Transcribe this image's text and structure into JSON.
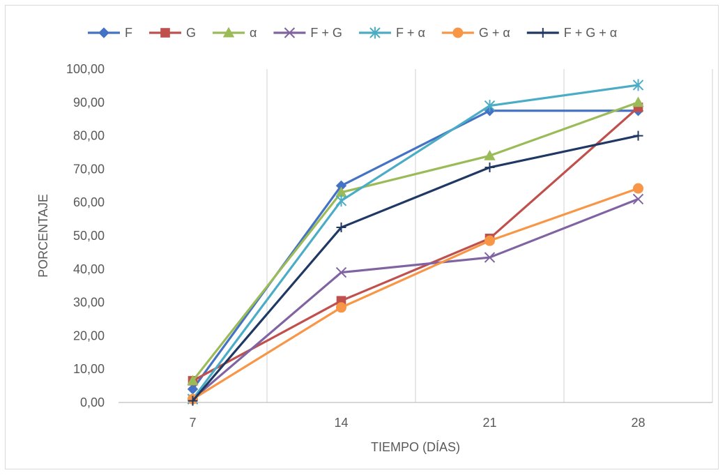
{
  "chart_data": {
    "type": "line",
    "title": "",
    "xlabel": "TIEMPO (DÍAS)",
    "ylabel": "PORCENTAJE",
    "categories": [
      "7",
      "14",
      "21",
      "28"
    ],
    "ylim": [
      0,
      100
    ],
    "ytick_labels": [
      "0,00",
      "10,00",
      "20,00",
      "30,00",
      "40,00",
      "50,00",
      "60,00",
      "70,00",
      "80,00",
      "90,00",
      "100,00"
    ],
    "grid": "vertical",
    "legend_position": "top",
    "series": [
      {
        "name": "F",
        "values": [
          4.0,
          65.0,
          87.5,
          87.5
        ],
        "color": "#4472C4",
        "marker": "diamond"
      },
      {
        "name": "G",
        "values": [
          6.5,
          30.5,
          49.2,
          88.5
        ],
        "color": "#C0504D",
        "marker": "square"
      },
      {
        "name": "α",
        "values": [
          6.5,
          63.0,
          74.0,
          90.0
        ],
        "color": "#9BBB59",
        "marker": "triangle"
      },
      {
        "name": "F + G",
        "values": [
          1.0,
          39.0,
          43.5,
          61.0
        ],
        "color": "#8064A2",
        "marker": "x"
      },
      {
        "name": "F + α",
        "values": [
          1.0,
          60.5,
          89.0,
          95.2
        ],
        "color": "#4BACC6",
        "marker": "star"
      },
      {
        "name": "G + α",
        "values": [
          1.0,
          28.5,
          48.5,
          64.2
        ],
        "color": "#F79646",
        "marker": "circle"
      },
      {
        "name": "F + G + α",
        "values": [
          0.5,
          52.5,
          70.5,
          80.0
        ],
        "color": "#1F3864",
        "marker": "plus"
      }
    ]
  }
}
